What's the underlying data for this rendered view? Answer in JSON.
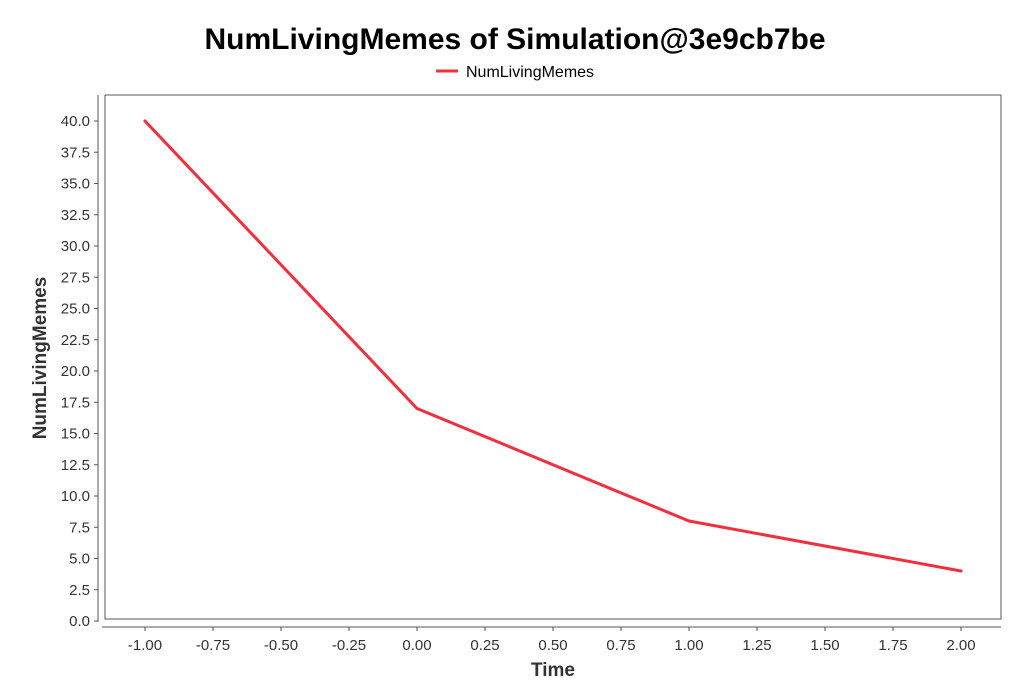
{
  "chart_data": {
    "type": "line",
    "title": "NumLivingMemes of Simulation@3e9cb7be",
    "xlabel": "Time",
    "ylabel": "NumLivingMemes",
    "xlim": [
      -1.0,
      2.0
    ],
    "ylim": [
      0.0,
      40.0
    ],
    "x_ticks": [
      "-1.00",
      "-0.75",
      "-0.50",
      "-0.25",
      "0.00",
      "0.25",
      "0.50",
      "0.75",
      "1.00",
      "1.25",
      "1.50",
      "1.75",
      "2.00"
    ],
    "y_ticks": [
      "0.0",
      "2.5",
      "5.0",
      "7.5",
      "10.0",
      "12.5",
      "15.0",
      "17.5",
      "20.0",
      "22.5",
      "25.0",
      "27.5",
      "30.0",
      "32.5",
      "35.0",
      "37.5",
      "40.0"
    ],
    "grid": false,
    "legend_position": "top",
    "series": [
      {
        "name": "NumLivingMemes",
        "color": "#f0303c",
        "x": [
          -1.0,
          0.0,
          1.0,
          2.0
        ],
        "y": [
          40.0,
          17.0,
          8.0,
          4.0
        ]
      }
    ]
  }
}
